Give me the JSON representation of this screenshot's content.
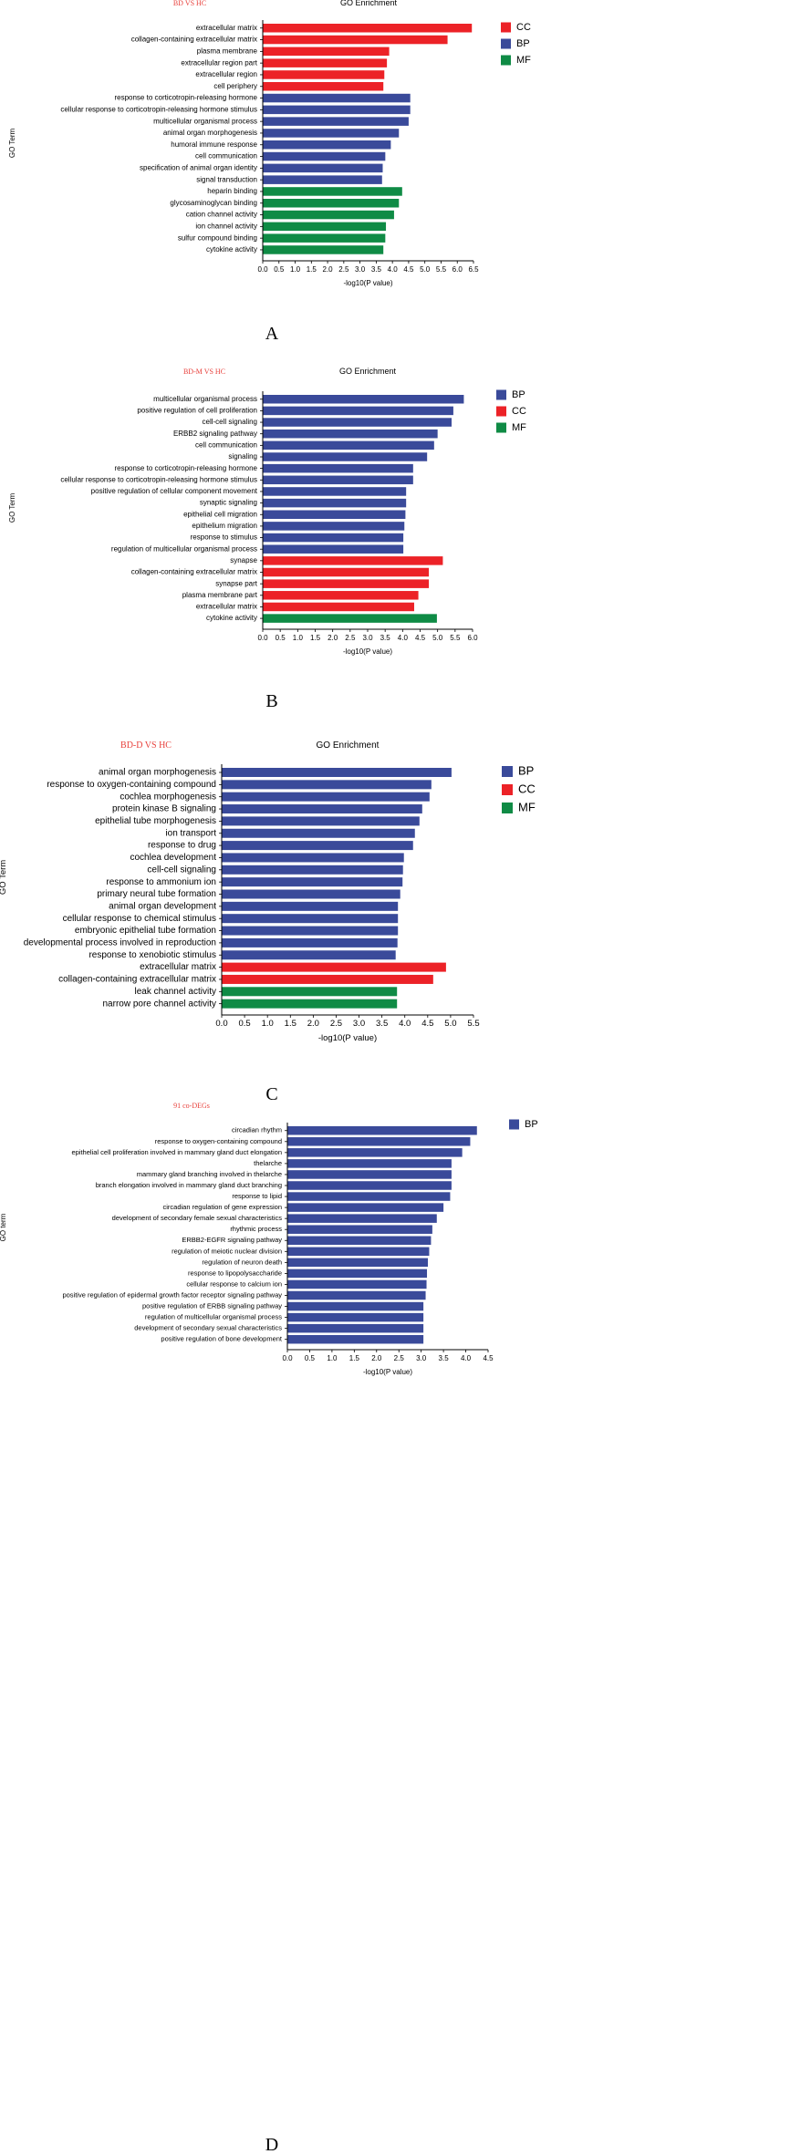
{
  "figure": {
    "colors": {
      "CC": "#ec2227",
      "BP": "#3a4a9a",
      "MF": "#0f8b45",
      "comparison_text": "#e8413c"
    }
  },
  "chart_data": [
    {
      "type": "bar",
      "orientation": "horizontal",
      "panel_label": "A",
      "comparison_label": "BD VS HC",
      "title": "GO Enrichment",
      "xlabel": "-log10(P value)",
      "ylabel": "GO Term",
      "xlim": [
        0,
        6.5
      ],
      "xticks": [
        "0.0",
        "0.5",
        "1.0",
        "1.5",
        "2.0",
        "2.5",
        "3.0",
        "3.5",
        "4.0",
        "4.5",
        "5.0",
        "5.5",
        "6.0",
        "6.5"
      ],
      "legend": [
        "CC",
        "BP",
        "MF"
      ],
      "categories": [
        "extracellular matrix",
        "collagen-containing extracellular matrix",
        "plasma membrane",
        "extracellular region part",
        "extracellular region",
        "cell periphery",
        "response to corticotropin-releasing hormone",
        "cellular response to corticotropin-releasing hormone stimulus",
        "multicellular organismal process",
        "animal organ morphogenesis",
        "humoral immune response",
        "cell communication",
        "specification of animal organ identity",
        "signal transduction",
        "heparin binding",
        "glycosaminoglycan binding",
        "cation channel activity",
        "ion channel activity",
        "sulfur compound binding",
        "cytokine activity"
      ],
      "values": [
        6.45,
        5.7,
        3.9,
        3.83,
        3.75,
        3.72,
        4.55,
        4.55,
        4.5,
        4.2,
        3.95,
        3.78,
        3.7,
        3.68,
        4.3,
        4.2,
        4.05,
        3.8,
        3.78,
        3.72
      ],
      "groups": [
        "CC",
        "CC",
        "CC",
        "CC",
        "CC",
        "CC",
        "BP",
        "BP",
        "BP",
        "BP",
        "BP",
        "BP",
        "BP",
        "BP",
        "MF",
        "MF",
        "MF",
        "MF",
        "MF",
        "MF"
      ]
    },
    {
      "type": "bar",
      "orientation": "horizontal",
      "panel_label": "B",
      "comparison_label": "BD-M VS HC",
      "title": "GO Enrichment",
      "xlabel": "-log10(P value)",
      "ylabel": "GO Term",
      "xlim": [
        0,
        6.0
      ],
      "xticks": [
        "0.0",
        "0.5",
        "1.0",
        "1.5",
        "2.0",
        "2.5",
        "3.0",
        "3.5",
        "4.0",
        "4.5",
        "5.0",
        "5.5",
        "6.0"
      ],
      "legend": [
        "BP",
        "CC",
        "MF"
      ],
      "categories": [
        "multicellular organismal process",
        "positive regulation of cell proliferation",
        "cell-cell signaling",
        "ERBB2 signaling pathway",
        "cell communication",
        "signaling",
        "response to corticotropin-releasing hormone",
        "cellular response to corticotropin-releasing hormone stimulus",
        "positive regulation of cellular component movement",
        "synaptic signaling",
        "epithelial cell migration",
        "epithelium migration",
        "response to stimulus",
        "regulation of multicellular organismal process",
        "synapse",
        "collagen-containing extracellular matrix",
        "synapse part",
        "plasma membrane part",
        "extracellular matrix",
        "cytokine activity"
      ],
      "values": [
        5.75,
        5.45,
        5.4,
        5.0,
        4.9,
        4.7,
        4.3,
        4.3,
        4.1,
        4.1,
        4.08,
        4.05,
        4.02,
        4.02,
        5.15,
        4.75,
        4.75,
        4.45,
        4.33,
        4.98
      ],
      "groups": [
        "BP",
        "BP",
        "BP",
        "BP",
        "BP",
        "BP",
        "BP",
        "BP",
        "BP",
        "BP",
        "BP",
        "BP",
        "BP",
        "BP",
        "CC",
        "CC",
        "CC",
        "CC",
        "CC",
        "MF"
      ]
    },
    {
      "type": "bar",
      "orientation": "horizontal",
      "panel_label": "C",
      "comparison_label": "BD-D VS HC",
      "title": "GO Enrichment",
      "xlabel": "-log10(P value)",
      "ylabel": "GO Term",
      "xlim": [
        0,
        5.5
      ],
      "xticks": [
        "0.0",
        "0.5",
        "1.0",
        "1.5",
        "2.0",
        "2.5",
        "3.0",
        "3.5",
        "4.0",
        "4.5",
        "5.0",
        "5.5"
      ],
      "legend": [
        "BP",
        "CC",
        "MF"
      ],
      "categories": [
        "animal organ morphogenesis",
        "response to oxygen-containing compound",
        "cochlea morphogenesis",
        "protein kinase B signaling",
        "epithelial tube morphogenesis",
        "ion transport",
        "response to drug",
        "cochlea development",
        "cell-cell signaling",
        "response to ammonium ion",
        "primary neural tube formation",
        "animal organ development",
        "cellular response to chemical stimulus",
        "embryonic epithelial tube formation",
        "developmental process involved in reproduction",
        "response to xenobiotic stimulus",
        "extracellular matrix",
        "collagen-containing extracellular matrix",
        "leak channel activity",
        "narrow pore channel activity"
      ],
      "values": [
        5.02,
        4.58,
        4.54,
        4.38,
        4.32,
        4.22,
        4.18,
        3.98,
        3.96,
        3.95,
        3.9,
        3.85,
        3.85,
        3.85,
        3.84,
        3.8,
        4.9,
        4.62,
        3.83,
        3.83
      ],
      "groups": [
        "BP",
        "BP",
        "BP",
        "BP",
        "BP",
        "BP",
        "BP",
        "BP",
        "BP",
        "BP",
        "BP",
        "BP",
        "BP",
        "BP",
        "BP",
        "BP",
        "CC",
        "CC",
        "MF",
        "MF"
      ]
    },
    {
      "type": "bar",
      "orientation": "horizontal",
      "panel_label": "D",
      "comparison_label": "91 co-DEGs",
      "title": "",
      "xlabel": "-log10(P value)",
      "ylabel": "GO term",
      "xlim": [
        0,
        4.5
      ],
      "xticks": [
        "0.0",
        "0.5",
        "1.0",
        "1.5",
        "2.0",
        "2.5",
        "3.0",
        "3.5",
        "4.0",
        "4.5"
      ],
      "legend": [
        "BP"
      ],
      "categories": [
        "circadian rhythm",
        "response to oxygen-containing compound",
        "epithelial cell proliferation involved in mammary gland duct elongation",
        "thelarche",
        "mammary gland branching involved in thelarche",
        "branch elongation involved in mammary gland duct branching",
        "response to lipid",
        "circadian regulation of gene expression",
        "development of secondary female sexual characteristics",
        "rhythmic process",
        "ERBB2-EGFR signaling pathway",
        "regulation of meiotic nuclear division",
        "regulation of neuron death",
        "response to lipopolysaccharide",
        "cellular response to calcium ion",
        "positive regulation of epidermal growth factor receptor signaling pathway",
        "positive regulation of ERBB signaling pathway",
        "regulation of multicellular organismal process",
        "development of secondary sexual characteristics",
        "positive regulation of bone development"
      ],
      "values": [
        4.25,
        4.1,
        3.92,
        3.68,
        3.68,
        3.68,
        3.65,
        3.5,
        3.35,
        3.25,
        3.22,
        3.18,
        3.15,
        3.13,
        3.12,
        3.1,
        3.05,
        3.05,
        3.05,
        3.05
      ],
      "groups": [
        "BP",
        "BP",
        "BP",
        "BP",
        "BP",
        "BP",
        "BP",
        "BP",
        "BP",
        "BP",
        "BP",
        "BP",
        "BP",
        "BP",
        "BP",
        "BP",
        "BP",
        "BP",
        "BP",
        "BP"
      ]
    }
  ]
}
